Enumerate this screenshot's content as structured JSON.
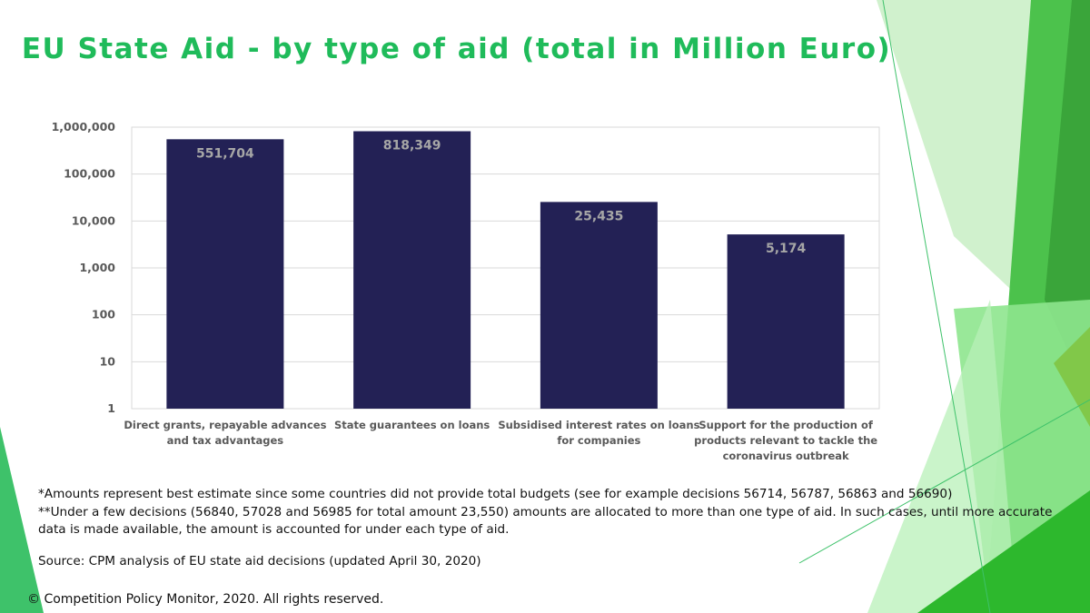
{
  "title": "EU State Aid - by type of aid (total in Million Euro)",
  "chart_data": {
    "type": "bar",
    "scale": "log",
    "ylim": [
      1,
      1000000
    ],
    "yticks": [
      "1",
      "10",
      "100",
      "1,000",
      "10,000",
      "100,000",
      "1,000,000"
    ],
    "categories": [
      [
        "Direct grants, repayable advances",
        "and tax advantages"
      ],
      [
        "State guarantees on loans"
      ],
      [
        "Subsidised interest rates on loans",
        "for companies"
      ],
      [
        "Support for the production of",
        "products relevant to tackle the",
        "coronavirus outbreak"
      ]
    ],
    "values": [
      551704,
      818349,
      25435,
      5174
    ],
    "value_labels": [
      "551,704",
      "818,349",
      "25,435",
      "5,174"
    ],
    "bar_color": "#232155",
    "grid": true
  },
  "notes": {
    "line1": "*Amounts represent best estimate since some countries did not provide total budgets (see for example decisions 56714, 56787, 56863 and 56690)",
    "line2": "**Under a few decisions (56840, 57028 and 56985 for total amount 23,550) amounts are allocated to more than one type of aid. In such cases, until more accurate",
    "line3": "data is made available, the amount is accounted for under each type of aid.",
    "source": "Source: CPM analysis of EU state aid decisions (updated April 30, 2020)"
  },
  "copyright": "© Competition Policy Monitor, 2020. All rights reserved.",
  "colors": {
    "title": "#1fbb5a",
    "accent_dark": "#3aa83a",
    "accent_light": "#8fe28f"
  }
}
